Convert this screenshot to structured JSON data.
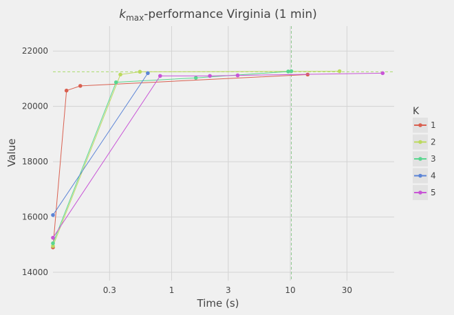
{
  "chart_data": {
    "type": "line",
    "title_prefix": "k",
    "title_sub": "max",
    "title_rest": "-performance Virginia (1 min)",
    "xlabel": "Time (s)",
    "ylabel": "Value",
    "x_scale": "log",
    "xlim": [
      0.1,
      75
    ],
    "ylim": [
      13700,
      22900
    ],
    "x_ticks": [
      0.3,
      1,
      3,
      10,
      30
    ],
    "x_tick_labels": [
      "0.3",
      "1",
      "3",
      "10",
      "30"
    ],
    "y_ticks": [
      14000,
      16000,
      18000,
      20000,
      22000
    ],
    "y_tick_labels": [
      "14000",
      "16000",
      "18000",
      "20000",
      "22000"
    ],
    "grid": true,
    "hline": {
      "y": 21250,
      "color": "#a6d96a"
    },
    "vline": {
      "x": 10.2,
      "color": "#8fc98f"
    },
    "legend": {
      "title": "K",
      "placement": "right"
    },
    "series": [
      {
        "name": "1",
        "color": "#d95f4f",
        "points": [
          [
            0.1,
            14900
          ],
          [
            0.13,
            20570
          ],
          [
            0.17,
            20740
          ],
          [
            14.0,
            21150
          ]
        ]
      },
      {
        "name": "2",
        "color": "#bcd95e",
        "points": [
          [
            0.1,
            14950
          ],
          [
            0.37,
            21150
          ],
          [
            0.54,
            21250
          ],
          [
            26.0,
            21270
          ]
        ]
      },
      {
        "name": "3",
        "color": "#59d68f",
        "points": [
          [
            0.1,
            15050
          ],
          [
            0.34,
            20870
          ],
          [
            1.6,
            21030
          ],
          [
            9.6,
            21260
          ],
          [
            10.2,
            21270
          ]
        ]
      },
      {
        "name": "4",
        "color": "#5b84d6",
        "points": [
          [
            0.1,
            16070
          ],
          [
            0.63,
            21200
          ]
        ]
      },
      {
        "name": "5",
        "color": "#c855d6",
        "points": [
          [
            0.1,
            15250
          ],
          [
            0.8,
            21100
          ],
          [
            2.1,
            21100
          ],
          [
            3.6,
            21120
          ],
          [
            60.0,
            21200
          ]
        ]
      }
    ]
  }
}
